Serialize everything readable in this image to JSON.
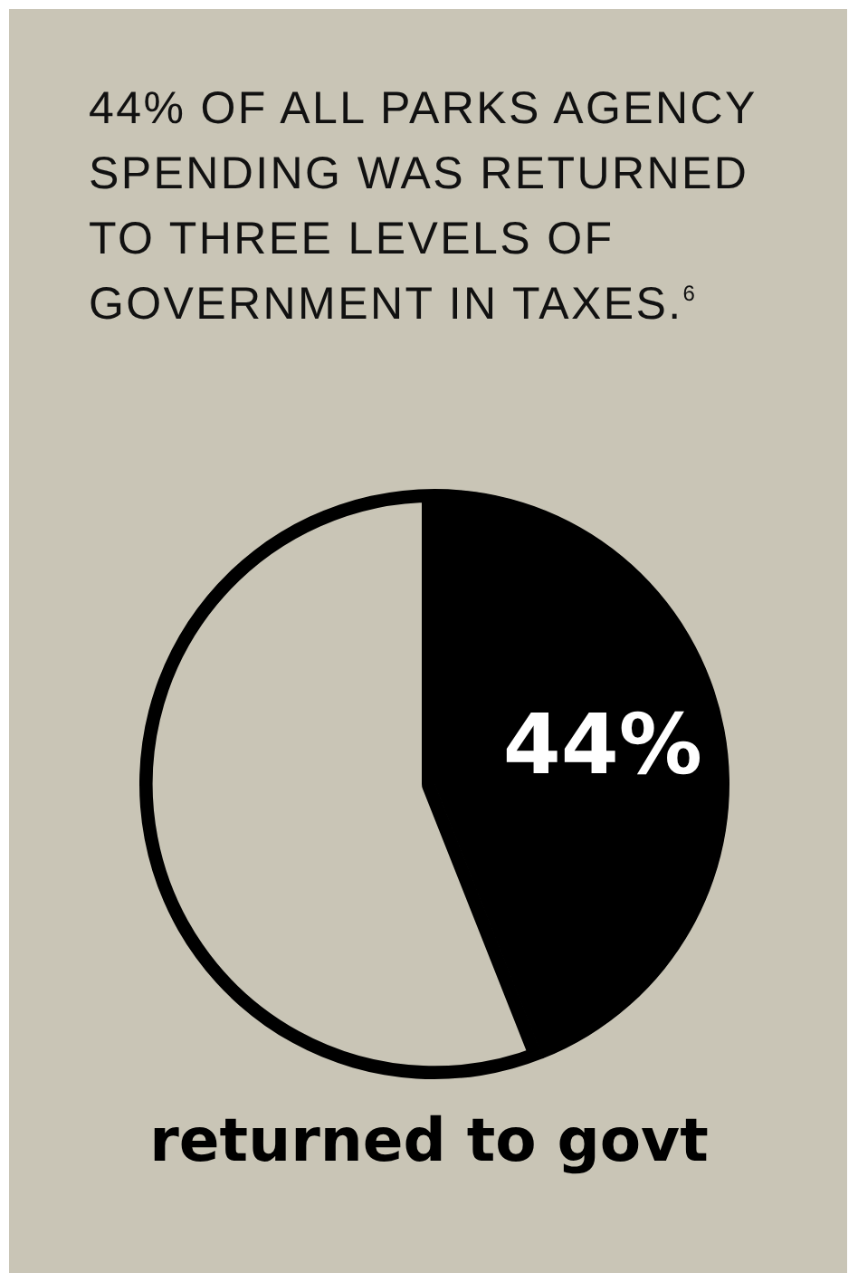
{
  "chart_data": {
    "type": "pie",
    "title": "44% OF ALL PARKS AGENCY SPENDING WAS RETURNED TO THREE LEVELS OF GOVERNMENT IN TAXES.$^{6}$",
    "categories": [
      null,
      null
    ],
    "annotations": [
      "returned to govt"
    ],
    "values": [
      44,
      56
    ],
    "colors": [
      "#000000",
      "#c9c5b6"
    ],
    "value_labels": [
      "44%",
      null
    ],
    "legend": false
  }
}
